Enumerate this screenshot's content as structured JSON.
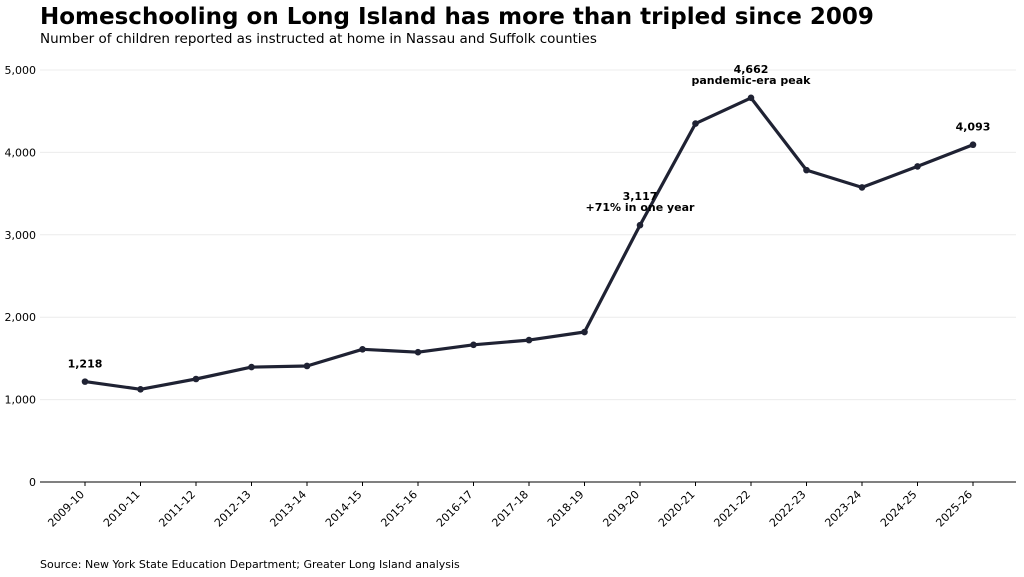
{
  "header": {
    "title": "Homeschooling on Long Island has more than tripled since 2009",
    "subtitle": "Number of children reported as instructed at home in Nassau and Suffolk counties"
  },
  "footer": {
    "source": "Source: New York State Education Department; Greater Long Island analysis"
  },
  "chart_data": {
    "type": "line",
    "title": "Homeschooling on Long Island has more than tripled since 2009",
    "subtitle": "Number of children reported as instructed at home in Nassau and Suffolk counties",
    "xlabel": "",
    "ylabel": "",
    "categories": [
      "2009-10",
      "2010-11",
      "2011-12",
      "2012-13",
      "2013-14",
      "2014-15",
      "2015-16",
      "2016-17",
      "2017-18",
      "2018-19",
      "2019-20",
      "2020-21",
      "2021-22",
      "2022-23",
      "2023-24",
      "2024-25",
      "2025-26"
    ],
    "series": [
      {
        "values": [
          1218,
          1125,
          1250,
          1395,
          1408,
          1610,
          1575,
          1665,
          1722,
          1820,
          3117,
          4350,
          4662,
          3785,
          3575,
          3830,
          4093
        ]
      }
    ],
    "ylim": [
      0,
      5000
    ],
    "yticks": [
      0,
      1000,
      2000,
      3000,
      4000,
      5000
    ],
    "ytick_labels": [
      "0",
      "1,000",
      "2,000",
      "3,000",
      "4,000",
      "5,000"
    ],
    "grid": "horizontal",
    "line_color": "#1f2233",
    "annotations": [
      {
        "category": "2009-10",
        "lines": [
          "1,218"
        ]
      },
      {
        "category": "2019-20",
        "lines": [
          "3,117",
          "+71% in one year"
        ]
      },
      {
        "category": "2021-22",
        "lines": [
          "4,662",
          "pandemic-era peak"
        ]
      },
      {
        "category": "2025-26",
        "lines": [
          "4,093"
        ]
      }
    ]
  }
}
